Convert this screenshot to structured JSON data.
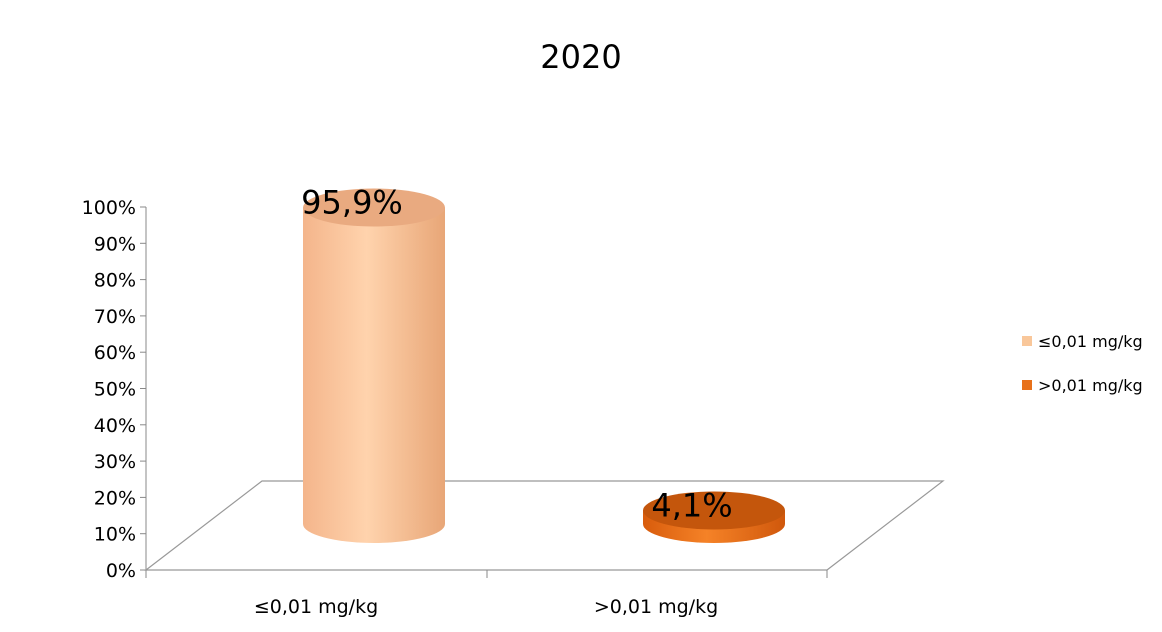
{
  "chart_data": {
    "type": "bar",
    "title": "2020",
    "categories": [
      "≤0,01 mg/kg",
      ">0,01 mg/kg"
    ],
    "values": [
      95.9,
      4.1
    ],
    "value_labels": [
      "95,9%",
      "4,1%"
    ],
    "ylim": [
      0,
      100
    ],
    "yticks": [
      "0%",
      "10%",
      "20%",
      "30%",
      "40%",
      "50%",
      "60%",
      "70%",
      "80%",
      "90%",
      "100%"
    ],
    "legend": [
      {
        "label": "≤0,01 mg/kg",
        "color": "#f9c79a"
      },
      {
        "label": ">0,01 mg/kg",
        "color": "#e8711a"
      }
    ],
    "legend_position": "right",
    "style": "3d-cylinder",
    "grid": false
  }
}
